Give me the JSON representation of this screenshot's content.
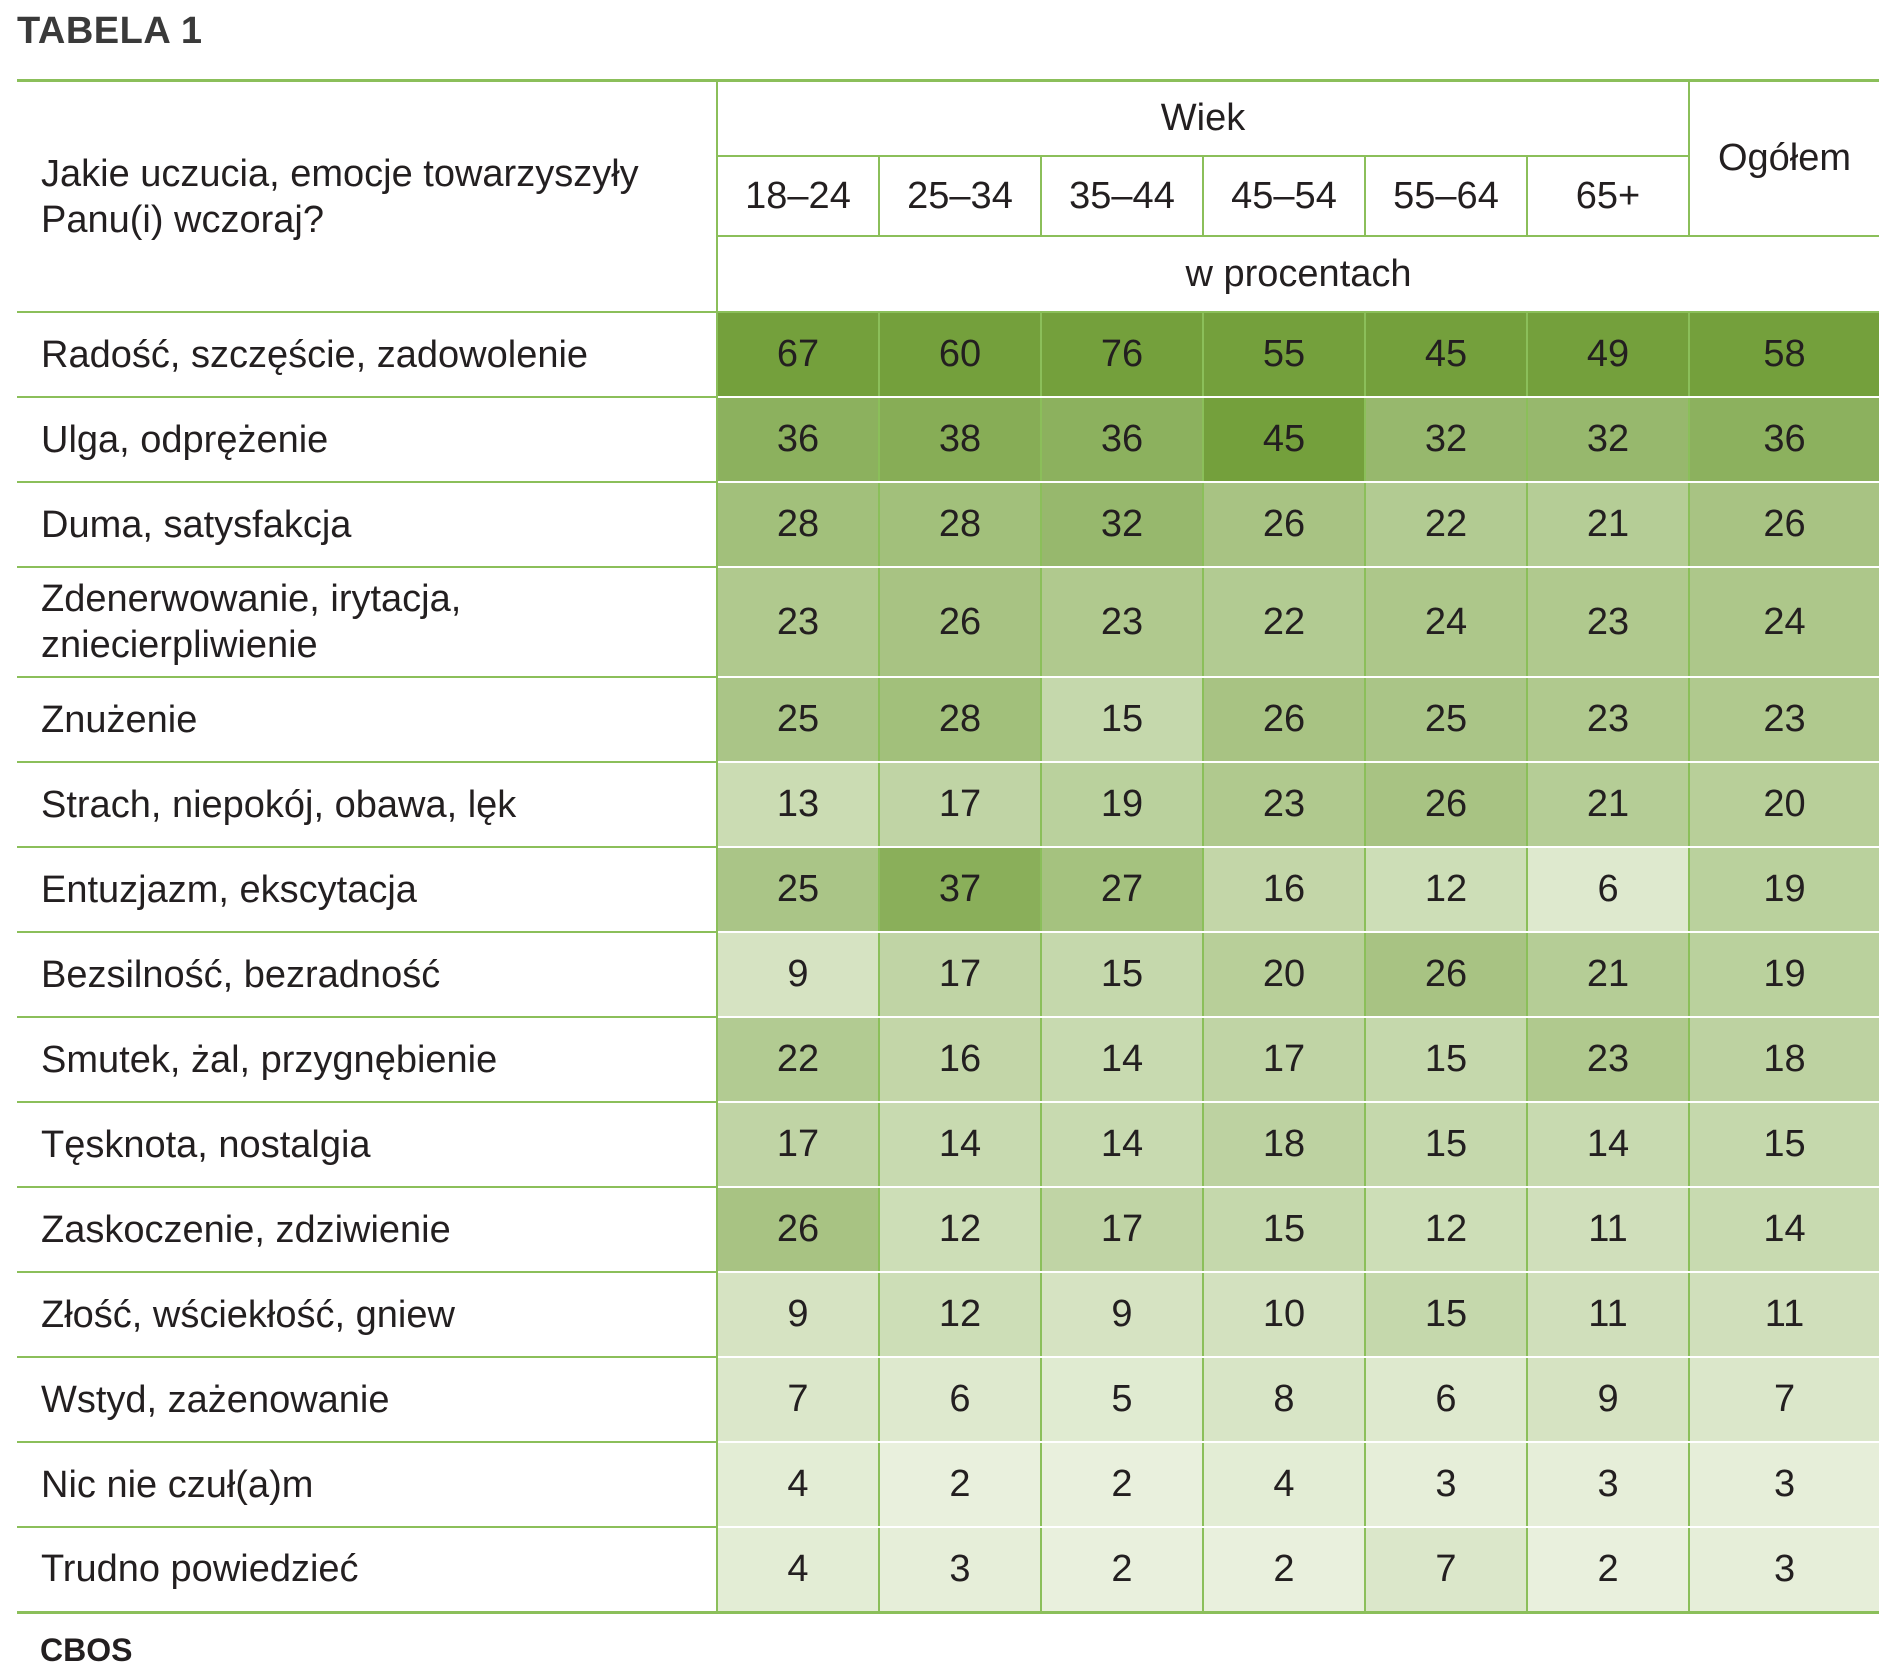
{
  "title": "TABELA 1",
  "source": "CBOS",
  "header": {
    "question": "Jakie uczucia, emocje towarzyszyły Panu(i) wczoraj?",
    "group_label": "Wiek",
    "total_label": "Ogółem",
    "unit_label": "w procentach",
    "age_groups": [
      "18–24",
      "25–34",
      "35–44",
      "45–54",
      "55–64",
      "65+"
    ]
  },
  "rows": [
    {
      "label": "Radość, szczęście, zadowolenie",
      "values": [
        "67",
        "60",
        "76",
        "55",
        "45",
        "49",
        "58"
      ]
    },
    {
      "label": "Ulga, odprężenie",
      "values": [
        "36",
        "38",
        "36",
        "45",
        "32",
        "32",
        "36"
      ]
    },
    {
      "label": "Duma, satysfakcja",
      "values": [
        "28",
        "28",
        "32",
        "26",
        "22",
        "21",
        "26"
      ]
    },
    {
      "label": "Zdenerwowanie, irytacja, zniecierpliwienie",
      "values": [
        "23",
        "26",
        "23",
        "22",
        "24",
        "23",
        "24"
      ]
    },
    {
      "label": "Znużenie",
      "values": [
        "25",
        "28",
        "15",
        "26",
        "25",
        "23",
        "23"
      ]
    },
    {
      "label": "Strach, niepokój, obawa, lęk",
      "values": [
        "13",
        "17",
        "19",
        "23",
        "26",
        "21",
        "20"
      ]
    },
    {
      "label": "Entuzjazm, ekscytacja",
      "values": [
        "25",
        "37",
        "27",
        "16",
        "12",
        "6",
        "19"
      ]
    },
    {
      "label": "Bezsilność, bezradność",
      "values": [
        "9",
        "17",
        "15",
        "20",
        "26",
        "21",
        "19"
      ]
    },
    {
      "label": "Smutek, żal, przygnębienie",
      "values": [
        "22",
        "16",
        "14",
        "17",
        "15",
        "23",
        "18"
      ]
    },
    {
      "label": "Tęsknota, nostalgia",
      "values": [
        "17",
        "14",
        "14",
        "18",
        "15",
        "14",
        "15"
      ]
    },
    {
      "label": "Zaskoczenie, zdziwienie",
      "values": [
        "26",
        "12",
        "17",
        "15",
        "12",
        "11",
        "14"
      ]
    },
    {
      "label": "Złość, wściekłość, gniew",
      "values": [
        "9",
        "12",
        "9",
        "10",
        "15",
        "11",
        "11"
      ]
    },
    {
      "label": "Wstyd, zażenowanie",
      "values": [
        "7",
        "6",
        "5",
        "8",
        "6",
        "9",
        "7"
      ]
    },
    {
      "label": "Nic nie czuł(a)m",
      "values": [
        "4",
        "2",
        "2",
        "4",
        "3",
        "3",
        "3"
      ]
    },
    {
      "label": "Trudno powiedzieć",
      "values": [
        "4",
        "3",
        "2",
        "2",
        "7",
        "2",
        "3"
      ]
    }
  ],
  "colors": {
    "border": "#8bbf5a",
    "heat_low": "#eef4e4",
    "heat_high": "#74a03c",
    "text": "#231f20"
  }
}
